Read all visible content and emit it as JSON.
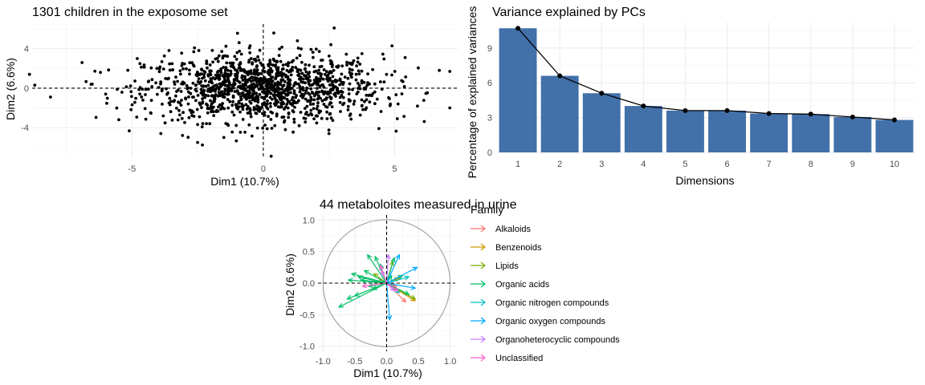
{
  "chart_data": [
    {
      "type": "scatter",
      "title": "1301 children in the exposome set",
      "xlabel": "Dim1 (10.7%)",
      "ylabel": "Dim2 (6.6%)",
      "xlim": [
        -8.8,
        7.4
      ],
      "ylim": [
        -7.0,
        6.5
      ],
      "x_ticks": [
        -5,
        0,
        5
      ],
      "x_tick_labels": [
        "-5",
        "0",
        "5"
      ],
      "y_ticks": [
        -4,
        0,
        4
      ],
      "y_tick_labels": [
        "-4",
        "0",
        "4"
      ],
      "grid": true,
      "reference_lines": {
        "x": 0,
        "y": 0,
        "style": "dashed"
      },
      "n_points": 1301,
      "points": [
        {
          "x": -8.9,
          "y": 1.4
        },
        {
          "x": -8.7,
          "y": 0.3
        },
        {
          "x": -8.1,
          "y": -0.9
        },
        {
          "x": -6.9,
          "y": 2.6
        },
        {
          "x": -6.2,
          "y": 1.6
        },
        {
          "x": -6.0,
          "y": -0.6
        },
        {
          "x": -5.5,
          "y": -3.2
        },
        {
          "x": -4.8,
          "y": 3.0
        },
        {
          "x": -3.9,
          "y": -4.6
        },
        {
          "x": -2.5,
          "y": -5.5
        },
        {
          "x": -1.5,
          "y": -5.0
        },
        {
          "x": 0.3,
          "y": -6.9
        },
        {
          "x": 0.4,
          "y": 5.6
        },
        {
          "x": 1.3,
          "y": 4.8
        },
        {
          "x": 2.7,
          "y": 6.1
        },
        {
          "x": 4.9,
          "y": 4.3
        },
        {
          "x": 5.4,
          "y": 3.1
        },
        {
          "x": 6.7,
          "y": 1.8
        },
        {
          "x": 7.1,
          "y": 1.7
        },
        {
          "x": 7.1,
          "y": -2.0
        },
        {
          "x": 5.1,
          "y": -3.1
        },
        {
          "x": 4.4,
          "y": -4.1
        },
        {
          "x": 2.5,
          "y": -4.6
        },
        {
          "x": -0.5,
          "y": 4.3
        }
      ]
    },
    {
      "type": "bar",
      "title": "Variance explained by PCs",
      "xlabel": "Dimensions",
      "ylabel": "Percentage of explained variances",
      "categories": [
        "1",
        "2",
        "3",
        "4",
        "5",
        "6",
        "7",
        "8",
        "9",
        "10"
      ],
      "values": [
        10.7,
        6.6,
        5.1,
        4.0,
        3.6,
        3.6,
        3.35,
        3.3,
        3.05,
        2.8
      ],
      "ylim": [
        0,
        11.2
      ],
      "y_ticks": [
        0,
        3,
        6,
        9
      ],
      "y_tick_labels": [
        "0",
        "3",
        "6",
        "9"
      ],
      "grid": true,
      "bar_color": "#4270a9",
      "line_overlay": true
    },
    {
      "type": "scatter",
      "subtype": "correlation-circle",
      "title": "44 metaboloites measured in urine",
      "xlabel": "Dim1 (10.7%)",
      "ylabel": "Dim2 (6.6%)",
      "xlim": [
        -1.08,
        1.08
      ],
      "ylim": [
        -1.08,
        1.08
      ],
      "x_ticks": [
        -1.0,
        -0.5,
        0.0,
        0.5,
        1.0
      ],
      "x_tick_labels": [
        "-1.0",
        "-0.5",
        "0.0",
        "0.5",
        "1.0"
      ],
      "y_ticks": [
        -1.0,
        -0.5,
        0.0,
        0.5,
        1.0
      ],
      "y_tick_labels": [
        "-1.0",
        "-0.5",
        "0.0",
        "0.5",
        "1.0"
      ],
      "grid": true,
      "legend": {
        "title": "Family",
        "position": "right",
        "entries": [
          {
            "name": "Alkaloids",
            "color": "#f8766d"
          },
          {
            "name": "Benzenoids",
            "color": "#cd9600"
          },
          {
            "name": "Lipids",
            "color": "#7cae00"
          },
          {
            "name": "Organic acids",
            "color": "#00be67"
          },
          {
            "name": "Organic nitrogen compounds",
            "color": "#00bfc4"
          },
          {
            "name": "Organic oxygen compounds",
            "color": "#00a9ff"
          },
          {
            "name": "Organoheterocyclic compounds",
            "color": "#c77cff"
          },
          {
            "name": "Unclassified",
            "color": "#ff61cc"
          }
        ]
      },
      "series": [
        {
          "name": "Alkaloids",
          "vectors": [
            [
              0.3,
              -0.3
            ],
            [
              0.15,
              -0.05
            ],
            [
              -0.15,
              0.03
            ]
          ]
        },
        {
          "name": "Benzenoids",
          "vectors": [
            [
              0.45,
              -0.28
            ],
            [
              0.2,
              0.08
            ]
          ]
        },
        {
          "name": "Lipids",
          "vectors": [
            [
              0.45,
              -0.25
            ],
            [
              -0.2,
              0.15
            ],
            [
              0.1,
              0.35
            ]
          ]
        },
        {
          "name": "Organic acids",
          "vectors": [
            [
              -0.75,
              -0.38
            ],
            [
              -0.62,
              -0.25
            ],
            [
              -0.5,
              -0.2
            ],
            [
              -0.45,
              0.1
            ],
            [
              -0.35,
              0.2
            ],
            [
              -0.3,
              0.45
            ],
            [
              -0.18,
              0.42
            ],
            [
              -0.1,
              0.3
            ],
            [
              -0.22,
              -0.1
            ],
            [
              -0.4,
              0.05
            ],
            [
              -0.6,
              0.05
            ],
            [
              -0.55,
              0.15
            ],
            [
              -0.28,
              -0.05
            ],
            [
              0.08,
              0.12
            ],
            [
              0.25,
              0.12
            ],
            [
              0.35,
              -0.18
            ],
            [
              0.12,
              0.4
            ]
          ]
        },
        {
          "name": "Organic nitrogen compounds",
          "vectors": [
            [
              0.35,
              0.1
            ],
            [
              0.2,
              -0.15
            ]
          ]
        },
        {
          "name": "Organic oxygen compounds",
          "vectors": [
            [
              0.05,
              -0.58
            ],
            [
              0.48,
              0.25
            ],
            [
              0.2,
              0.45
            ],
            [
              0.45,
              -0.08
            ]
          ]
        },
        {
          "name": "Organoheterocyclic compounds",
          "vectors": [
            [
              0.03,
              0.45
            ],
            [
              -0.08,
              0.2
            ],
            [
              0.12,
              -0.12
            ]
          ]
        },
        {
          "name": "Unclassified",
          "vectors": [
            [
              -0.38,
              -0.05
            ],
            [
              -0.1,
              0.28
            ],
            [
              0.18,
              -0.12
            ]
          ]
        }
      ]
    }
  ]
}
